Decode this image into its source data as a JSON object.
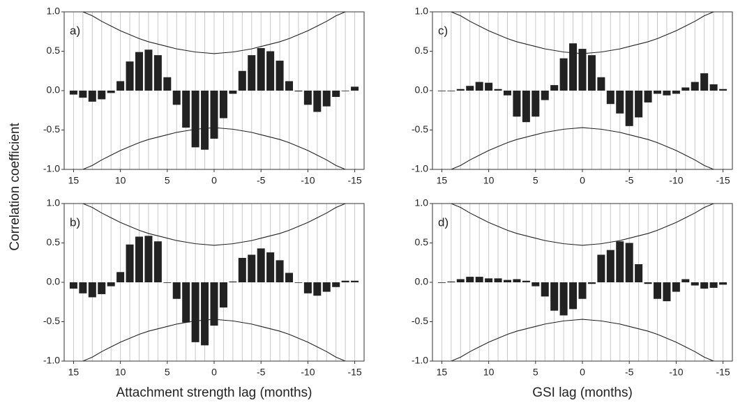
{
  "chart_data": [
    {
      "type": "bar",
      "panel_label": "a)",
      "ylabel": "Correlation coefficient",
      "color": "#222222",
      "grid": true,
      "x": [
        15,
        14,
        13,
        12,
        11,
        10,
        9,
        8,
        7,
        6,
        5,
        4,
        3,
        2,
        1,
        0,
        -1,
        -2,
        -3,
        -4,
        -5,
        -6,
        -7,
        -8,
        -9,
        -10,
        -11,
        -12,
        -13,
        -14,
        -15
      ],
      "values": [
        -0.05,
        -0.09,
        -0.14,
        -0.11,
        -0.03,
        0.12,
        0.37,
        0.49,
        0.52,
        0.45,
        0.17,
        -0.18,
        -0.47,
        -0.72,
        -0.75,
        -0.61,
        -0.35,
        -0.04,
        0.25,
        0.45,
        0.54,
        0.5,
        0.38,
        0.12,
        -0.01,
        -0.18,
        -0.27,
        -0.2,
        -0.08,
        0.0,
        0.05
      ],
      "confidence_upper": [
        1.06,
        1.0,
        0.95,
        0.88,
        0.82,
        0.76,
        0.71,
        0.66,
        0.62,
        0.59,
        0.56,
        0.53,
        0.51,
        0.49,
        0.48,
        0.47,
        0.48,
        0.49,
        0.51,
        0.53,
        0.56,
        0.59,
        0.62,
        0.66,
        0.71,
        0.76,
        0.82,
        0.88,
        0.95,
        1.0,
        1.06
      ],
      "confidence_lower": [
        -1.06,
        -1.0,
        -0.95,
        -0.88,
        -0.82,
        -0.76,
        -0.71,
        -0.66,
        -0.62,
        -0.59,
        -0.56,
        -0.53,
        -0.51,
        -0.49,
        -0.48,
        -0.47,
        -0.48,
        -0.49,
        -0.51,
        -0.53,
        -0.56,
        -0.59,
        -0.62,
        -0.66,
        -0.71,
        -0.76,
        -0.82,
        -0.88,
        -0.95,
        -1.0,
        -1.06
      ],
      "xlim": [
        16,
        -16
      ],
      "xticks": [
        15,
        10,
        5,
        0,
        -5,
        -10,
        -15
      ],
      "ylim": [
        -1,
        1
      ],
      "yticks": [
        {
          "value": -1,
          "label": "-1.0"
        },
        {
          "value": -0.5,
          "label": "-0.5"
        },
        {
          "value": 0,
          "label": "0.0"
        },
        {
          "value": 0.5,
          "label": "0.5"
        },
        {
          "value": 1,
          "label": "1.0"
        }
      ]
    },
    {
      "type": "bar",
      "panel_label": "b)",
      "xlabel": "Attachment strength lag (months)",
      "color": "#222222",
      "grid": true,
      "x": [
        15,
        14,
        13,
        12,
        11,
        10,
        9,
        8,
        7,
        6,
        5,
        4,
        3,
        2,
        1,
        0,
        -1,
        -2,
        -3,
        -4,
        -5,
        -6,
        -7,
        -8,
        -9,
        -10,
        -11,
        -12,
        -13,
        -14,
        -15
      ],
      "values": [
        -0.08,
        -0.14,
        -0.19,
        -0.15,
        -0.05,
        0.13,
        0.48,
        0.58,
        0.59,
        0.52,
        0.0,
        -0.21,
        -0.51,
        -0.76,
        -0.8,
        -0.55,
        -0.32,
        0.01,
        0.31,
        0.35,
        0.43,
        0.38,
        0.28,
        0.12,
        0.0,
        -0.14,
        -0.17,
        -0.12,
        -0.06,
        0.02,
        0.02
      ],
      "confidence_upper": [
        1.06,
        1.0,
        0.95,
        0.88,
        0.82,
        0.76,
        0.71,
        0.66,
        0.62,
        0.59,
        0.56,
        0.53,
        0.51,
        0.49,
        0.48,
        0.47,
        0.48,
        0.49,
        0.51,
        0.53,
        0.56,
        0.59,
        0.62,
        0.66,
        0.71,
        0.76,
        0.82,
        0.88,
        0.95,
        1.0,
        1.06
      ],
      "confidence_lower": [
        -1.06,
        -1.0,
        -0.95,
        -0.88,
        -0.82,
        -0.76,
        -0.71,
        -0.66,
        -0.62,
        -0.59,
        -0.56,
        -0.53,
        -0.51,
        -0.49,
        -0.48,
        -0.47,
        -0.48,
        -0.49,
        -0.51,
        -0.53,
        -0.56,
        -0.59,
        -0.62,
        -0.66,
        -0.71,
        -0.76,
        -0.82,
        -0.88,
        -0.95,
        -1.0,
        -1.06
      ],
      "xlim": [
        16,
        -16
      ],
      "xticks": [
        15,
        10,
        5,
        0,
        -5,
        -10,
        -15
      ],
      "ylim": [
        -1,
        1
      ],
      "yticks": [
        {
          "value": -1,
          "label": "-1.0"
        },
        {
          "value": -0.5,
          "label": "-0.5"
        },
        {
          "value": 0,
          "label": "0.0"
        },
        {
          "value": 0.5,
          "label": "0.5"
        },
        {
          "value": 1,
          "label": "1.0"
        }
      ]
    },
    {
      "type": "bar",
      "panel_label": "c)",
      "color": "#222222",
      "grid": true,
      "x": [
        15,
        14,
        13,
        12,
        11,
        10,
        9,
        8,
        7,
        6,
        5,
        4,
        3,
        2,
        1,
        0,
        -1,
        -2,
        -3,
        -4,
        -5,
        -6,
        -7,
        -8,
        -9,
        -10,
        -11,
        -12,
        -13,
        -14,
        -15
      ],
      "values": [
        0.0,
        0.0,
        0.02,
        0.06,
        0.11,
        0.1,
        0.02,
        -0.06,
        -0.33,
        -0.4,
        -0.33,
        -0.12,
        0.07,
        0.41,
        0.6,
        0.53,
        0.45,
        0.17,
        -0.17,
        -0.29,
        -0.45,
        -0.34,
        -0.15,
        -0.04,
        -0.06,
        -0.04,
        0.04,
        0.11,
        0.22,
        0.08,
        0.02
      ],
      "confidence_upper": [
        1.06,
        1.0,
        0.95,
        0.88,
        0.82,
        0.76,
        0.71,
        0.66,
        0.62,
        0.59,
        0.56,
        0.53,
        0.51,
        0.49,
        0.48,
        0.47,
        0.48,
        0.49,
        0.51,
        0.53,
        0.56,
        0.59,
        0.62,
        0.66,
        0.71,
        0.76,
        0.82,
        0.88,
        0.95,
        1.0,
        1.06
      ],
      "confidence_lower": [
        -1.06,
        -1.0,
        -0.95,
        -0.88,
        -0.82,
        -0.76,
        -0.71,
        -0.66,
        -0.62,
        -0.59,
        -0.56,
        -0.53,
        -0.51,
        -0.49,
        -0.48,
        -0.47,
        -0.48,
        -0.49,
        -0.51,
        -0.53,
        -0.56,
        -0.59,
        -0.62,
        -0.66,
        -0.71,
        -0.76,
        -0.82,
        -0.88,
        -0.95,
        -1.0,
        -1.06
      ],
      "xlim": [
        16,
        -16
      ],
      "xticks": [
        15,
        10,
        5,
        0,
        -5,
        -10,
        -15
      ],
      "ylim": [
        -1,
        1
      ],
      "yticks": [
        {
          "value": -1,
          "label": "-1.0"
        },
        {
          "value": -0.5,
          "label": "-0.5"
        },
        {
          "value": 0,
          "label": "0.0"
        },
        {
          "value": 0.5,
          "label": "0.5"
        },
        {
          "value": 1,
          "label": "1.0"
        }
      ]
    },
    {
      "type": "bar",
      "panel_label": "d)",
      "xlabel": "GSI lag (months)",
      "color": "#222222",
      "grid": true,
      "x": [
        15,
        14,
        13,
        12,
        11,
        10,
        9,
        8,
        7,
        6,
        5,
        4,
        3,
        2,
        1,
        0,
        -1,
        -2,
        -3,
        -4,
        -5,
        -6,
        -7,
        -8,
        -9,
        -10,
        -11,
        -12,
        -13,
        -14,
        -15
      ],
      "values": [
        0.0,
        0.01,
        0.04,
        0.07,
        0.07,
        0.05,
        0.05,
        0.03,
        0.04,
        0.02,
        -0.05,
        -0.18,
        -0.36,
        -0.42,
        -0.34,
        -0.21,
        -0.02,
        0.35,
        0.41,
        0.52,
        0.5,
        0.23,
        -0.02,
        -0.21,
        -0.24,
        -0.12,
        0.04,
        -0.04,
        -0.08,
        -0.07,
        -0.03
      ],
      "confidence_upper": [
        1.06,
        1.0,
        0.95,
        0.88,
        0.82,
        0.76,
        0.71,
        0.66,
        0.62,
        0.59,
        0.56,
        0.53,
        0.51,
        0.49,
        0.48,
        0.47,
        0.48,
        0.49,
        0.51,
        0.53,
        0.56,
        0.59,
        0.62,
        0.66,
        0.71,
        0.76,
        0.82,
        0.88,
        0.95,
        1.0,
        1.06
      ],
      "confidence_lower": [
        -1.06,
        -1.0,
        -0.95,
        -0.88,
        -0.82,
        -0.76,
        -0.71,
        -0.66,
        -0.62,
        -0.59,
        -0.56,
        -0.53,
        -0.51,
        -0.49,
        -0.48,
        -0.47,
        -0.48,
        -0.49,
        -0.51,
        -0.53,
        -0.56,
        -0.59,
        -0.62,
        -0.66,
        -0.71,
        -0.76,
        -0.82,
        -0.88,
        -0.95,
        -1.0,
        -1.06
      ],
      "xlim": [
        16,
        -16
      ],
      "xticks": [
        15,
        10,
        5,
        0,
        -5,
        -10,
        -15
      ],
      "ylim": [
        -1,
        1
      ],
      "yticks": [
        {
          "value": -1,
          "label": "-1.0"
        },
        {
          "value": -0.5,
          "label": "-0.5"
        },
        {
          "value": 0,
          "label": "0.0"
        },
        {
          "value": 0.5,
          "label": "0.5"
        },
        {
          "value": 1,
          "label": "1.0"
        }
      ]
    }
  ]
}
